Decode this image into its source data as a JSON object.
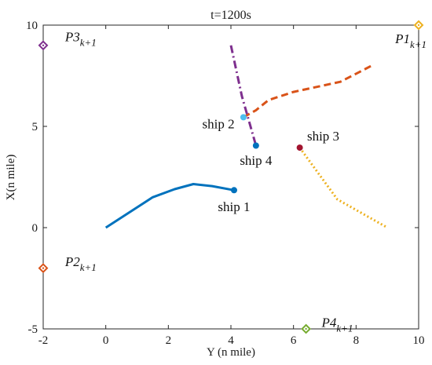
{
  "chart_data": {
    "type": "line",
    "title": "t=1200s",
    "xlabel": "Y (n mile)",
    "ylabel": "X(n mile)",
    "xlim": [
      -2,
      10
    ],
    "ylim": [
      -5,
      10
    ],
    "xticks": [
      -2,
      0,
      2,
      4,
      6,
      8,
      10
    ],
    "yticks": [
      -5,
      0,
      5,
      10
    ],
    "xtick_labels": [
      "-2",
      "0",
      "2",
      "4",
      "6",
      "8",
      "10"
    ],
    "ytick_labels": [
      "-5",
      "0",
      "5",
      "10"
    ],
    "grid": false,
    "series": [
      {
        "name": "ship 1",
        "color": "#0072bd",
        "style": "solid",
        "x": [
          0.0,
          1.5,
          2.2,
          2.8,
          3.4,
          4.1
        ],
        "y": [
          0.0,
          1.5,
          1.9,
          2.15,
          2.05,
          1.85
        ],
        "current": [
          4.1,
          1.85
        ],
        "label_at": [
          4.1,
          1.0
        ]
      },
      {
        "name": "ship 2",
        "color": "#d95319",
        "style": "dashed",
        "x": [
          4.4,
          4.8,
          5.2,
          6.0,
          7.5,
          8.5
        ],
        "y": [
          5.45,
          5.8,
          6.3,
          6.7,
          7.2,
          8.0
        ],
        "current": [
          4.4,
          5.45
        ],
        "marker_color": "#4dbeee",
        "label_at": [
          3.6,
          5.1
        ]
      },
      {
        "name": "ship 3",
        "color": "#edb120",
        "style": "dotted",
        "x": [
          6.2,
          7.4,
          9.0
        ],
        "y": [
          3.95,
          1.4,
          0.0
        ],
        "current": [
          6.2,
          3.95
        ],
        "marker_color": "#a2142f",
        "label_at": [
          6.95,
          4.5
        ]
      },
      {
        "name": "ship 4",
        "color": "#7e2f8e",
        "style": "dashdot",
        "x": [
          4.0,
          4.35,
          4.8
        ],
        "y": [
          9.0,
          6.5,
          4.05
        ],
        "current": [
          4.8,
          4.05
        ],
        "marker_color": "#0072bd",
        "label_at": [
          4.8,
          3.3
        ]
      }
    ],
    "waypoints": [
      {
        "name": "P1",
        "sub": "k+1",
        "x": 10,
        "y": 10,
        "color": "#edb120",
        "label_at": [
          9.25,
          9.3
        ]
      },
      {
        "name": "P2",
        "sub": "k+1",
        "x": -2,
        "y": -2,
        "color": "#d95319",
        "label_at": [
          -1.3,
          -1.7
        ]
      },
      {
        "name": "P3",
        "sub": "k+1",
        "x": -2,
        "y": 9,
        "color": "#7e2f8e",
        "label_at": [
          -1.3,
          9.4
        ]
      },
      {
        "name": "P4",
        "sub": "k+1",
        "x": 6.4,
        "y": -5,
        "color": "#77ac30",
        "label_at": [
          6.9,
          -4.7
        ]
      }
    ]
  }
}
